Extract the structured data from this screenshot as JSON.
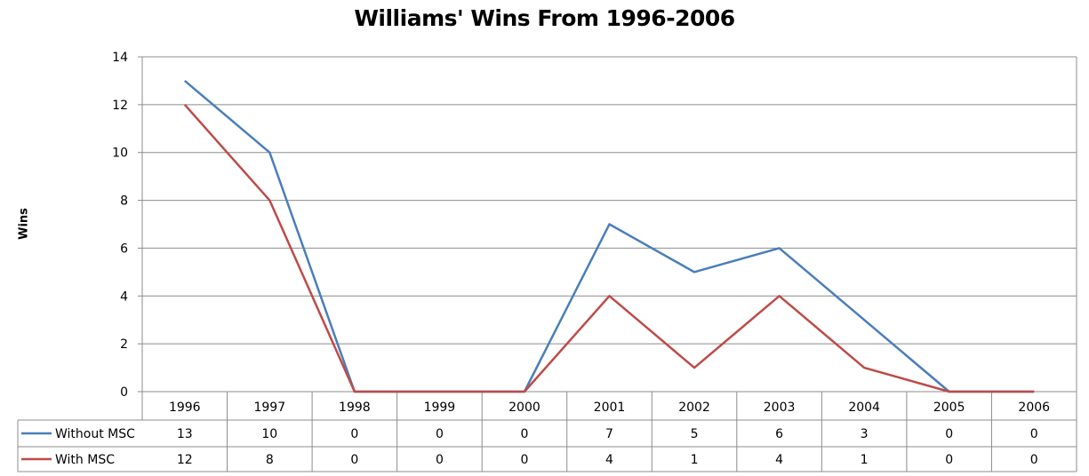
{
  "chart_data": {
    "type": "line",
    "title": "Williams' Wins From 1996-2006",
    "xlabel": "",
    "ylabel": "Wins",
    "categories": [
      "1996",
      "1997",
      "1998",
      "1999",
      "2000",
      "2001",
      "2002",
      "2003",
      "2004",
      "2005",
      "2006"
    ],
    "yticks": [
      "0",
      "2",
      "4",
      "6",
      "8",
      "10",
      "12",
      "14"
    ],
    "ylim": [
      0,
      14
    ],
    "grid": true,
    "legend": "data table",
    "series": [
      {
        "name": "Without MSC",
        "color": "#4a7ebb",
        "values": [
          13,
          10,
          0,
          0,
          0,
          7,
          5,
          6,
          3,
          0,
          0
        ]
      },
      {
        "name": "With MSC",
        "color": "#be4b48",
        "values": [
          12,
          8,
          0,
          0,
          0,
          4,
          1,
          4,
          1,
          0,
          0
        ]
      }
    ]
  }
}
